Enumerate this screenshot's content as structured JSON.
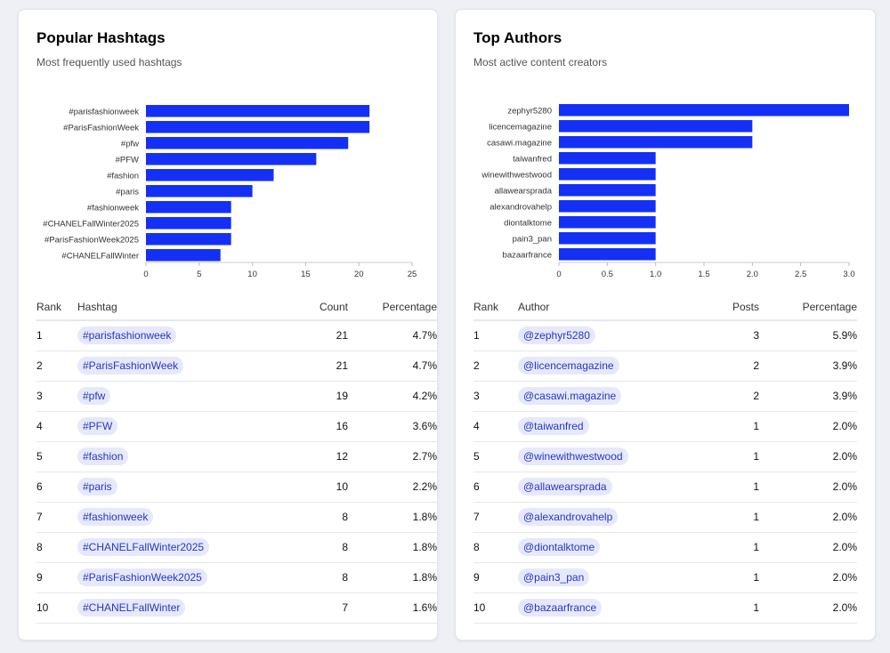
{
  "hashtags": {
    "title": "Popular Hashtags",
    "subtitle": "Most frequently used hashtags",
    "columns": {
      "rank": "Rank",
      "name": "Hashtag",
      "count": "Count",
      "pct": "Percentage"
    },
    "rows": [
      {
        "rank": "1",
        "name": "#parisfashionweek",
        "count": "21",
        "pct": "4.7%"
      },
      {
        "rank": "2",
        "name": "#ParisFashionWeek",
        "count": "21",
        "pct": "4.7%"
      },
      {
        "rank": "3",
        "name": "#pfw",
        "count": "19",
        "pct": "4.2%"
      },
      {
        "rank": "4",
        "name": "#PFW",
        "count": "16",
        "pct": "3.6%"
      },
      {
        "rank": "5",
        "name": "#fashion",
        "count": "12",
        "pct": "2.7%"
      },
      {
        "rank": "6",
        "name": "#paris",
        "count": "10",
        "pct": "2.2%"
      },
      {
        "rank": "7",
        "name": "#fashionweek",
        "count": "8",
        "pct": "1.8%"
      },
      {
        "rank": "8",
        "name": "#CHANELFallWinter2025",
        "count": "8",
        "pct": "1.8%"
      },
      {
        "rank": "9",
        "name": "#ParisFashionWeek2025",
        "count": "8",
        "pct": "1.8%"
      },
      {
        "rank": "10",
        "name": "#CHANELFallWinter",
        "count": "7",
        "pct": "1.6%"
      }
    ]
  },
  "authors": {
    "title": "Top Authors",
    "subtitle": "Most active content creators",
    "columns": {
      "rank": "Rank",
      "name": "Author",
      "count": "Posts",
      "pct": "Percentage"
    },
    "rows": [
      {
        "rank": "1",
        "name": "@zephyr5280",
        "count": "3",
        "pct": "5.9%"
      },
      {
        "rank": "2",
        "name": "@licencemagazine",
        "count": "2",
        "pct": "3.9%"
      },
      {
        "rank": "3",
        "name": "@casawi.magazine",
        "count": "2",
        "pct": "3.9%"
      },
      {
        "rank": "4",
        "name": "@taiwanfred",
        "count": "1",
        "pct": "2.0%"
      },
      {
        "rank": "5",
        "name": "@winewithwestwood",
        "count": "1",
        "pct": "2.0%"
      },
      {
        "rank": "6",
        "name": "@allawearsprada",
        "count": "1",
        "pct": "2.0%"
      },
      {
        "rank": "7",
        "name": "@alexandrovahelp",
        "count": "1",
        "pct": "2.0%"
      },
      {
        "rank": "8",
        "name": "@diontalktome",
        "count": "1",
        "pct": "2.0%"
      },
      {
        "rank": "9",
        "name": "@pain3_pan",
        "count": "1",
        "pct": "2.0%"
      },
      {
        "rank": "10",
        "name": "@bazaarfrance",
        "count": "1",
        "pct": "2.0%"
      }
    ]
  },
  "chart_data": [
    {
      "type": "bar",
      "orientation": "horizontal",
      "categories": [
        "#parisfashionweek",
        "#ParisFashionWeek",
        "#pfw",
        "#PFW",
        "#fashion",
        "#paris",
        "#fashionweek",
        "#CHANELFallWinter2025",
        "#ParisFashionWeek2025",
        "#CHANELFallWinter"
      ],
      "values": [
        21,
        21,
        19,
        16,
        12,
        10,
        8,
        8,
        8,
        7
      ],
      "xlim": [
        0,
        25
      ],
      "xticks": [
        "0",
        "5",
        "10",
        "15",
        "20",
        "25"
      ],
      "bar_color": "#1530f5",
      "grid": false
    },
    {
      "type": "bar",
      "orientation": "horizontal",
      "categories": [
        "zephyr5280",
        "licencemagazine",
        "casawi.magazine",
        "taiwanfred",
        "winewithwestwood",
        "allawearsprada",
        "alexandrovahelp",
        "diontalktome",
        "pain3_pan",
        "bazaarfrance"
      ],
      "values": [
        3,
        2,
        2,
        1,
        1,
        1,
        1,
        1,
        1,
        1
      ],
      "xlim": [
        0,
        3
      ],
      "xticks": [
        "0",
        "0.5",
        "1.0",
        "1.5",
        "2.0",
        "2.5",
        "3.0"
      ],
      "bar_color": "#1530f5",
      "grid": false
    }
  ]
}
